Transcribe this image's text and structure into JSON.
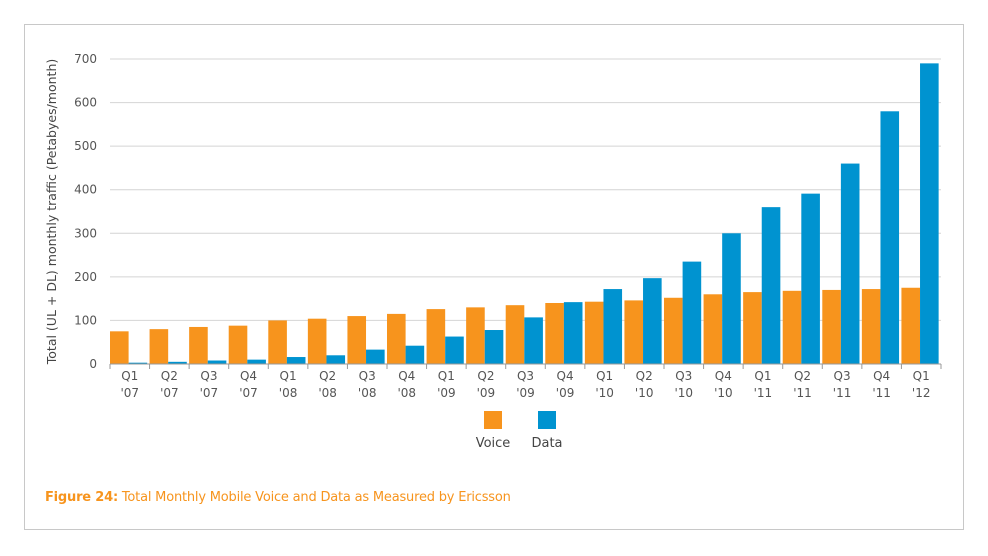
{
  "chart_data": {
    "type": "bar",
    "ylabel": "Total (UL + DL) monthly traffic (Petabyes/month)",
    "xlabel": "",
    "ylim": [
      0,
      700
    ],
    "yticks": [
      "0",
      "100",
      "200",
      "300",
      "400",
      "500",
      "600",
      "700"
    ],
    "grid": true,
    "legend_position": "bottom-center",
    "categories": [
      [
        "Q1",
        "'07"
      ],
      [
        "Q2",
        "'07"
      ],
      [
        "Q3",
        "'07"
      ],
      [
        "Q4",
        "'07"
      ],
      [
        "Q1",
        "'08"
      ],
      [
        "Q2",
        "'08"
      ],
      [
        "Q3",
        "'08"
      ],
      [
        "Q4",
        "'08"
      ],
      [
        "Q1",
        "'09"
      ],
      [
        "Q2",
        "'09"
      ],
      [
        "Q3",
        "'09"
      ],
      [
        "Q4",
        "'09"
      ],
      [
        "Q1",
        "'10"
      ],
      [
        "Q2",
        "'10"
      ],
      [
        "Q3",
        "'10"
      ],
      [
        "Q4",
        "'10"
      ],
      [
        "Q1",
        "'11"
      ],
      [
        "Q2",
        "'11"
      ],
      [
        "Q3",
        "'11"
      ],
      [
        "Q4",
        "'11"
      ],
      [
        "Q1",
        "'12"
      ]
    ],
    "series": [
      {
        "name": "Voice",
        "color": "#f7941d",
        "values": [
          75,
          80,
          85,
          88,
          100,
          104,
          110,
          115,
          126,
          130,
          135,
          140,
          143,
          146,
          152,
          160,
          165,
          168,
          170,
          172,
          175
        ]
      },
      {
        "name": "Data",
        "color": "#0093d0",
        "values": [
          3,
          5,
          8,
          10,
          16,
          20,
          33,
          42,
          63,
          78,
          107,
          142,
          172,
          197,
          235,
          300,
          360,
          391,
          460,
          580,
          690
        ]
      }
    ]
  },
  "caption": {
    "label": "Figure 24:",
    "text": " Total Monthly Mobile Voice and Data as Measured by Ericsson"
  }
}
